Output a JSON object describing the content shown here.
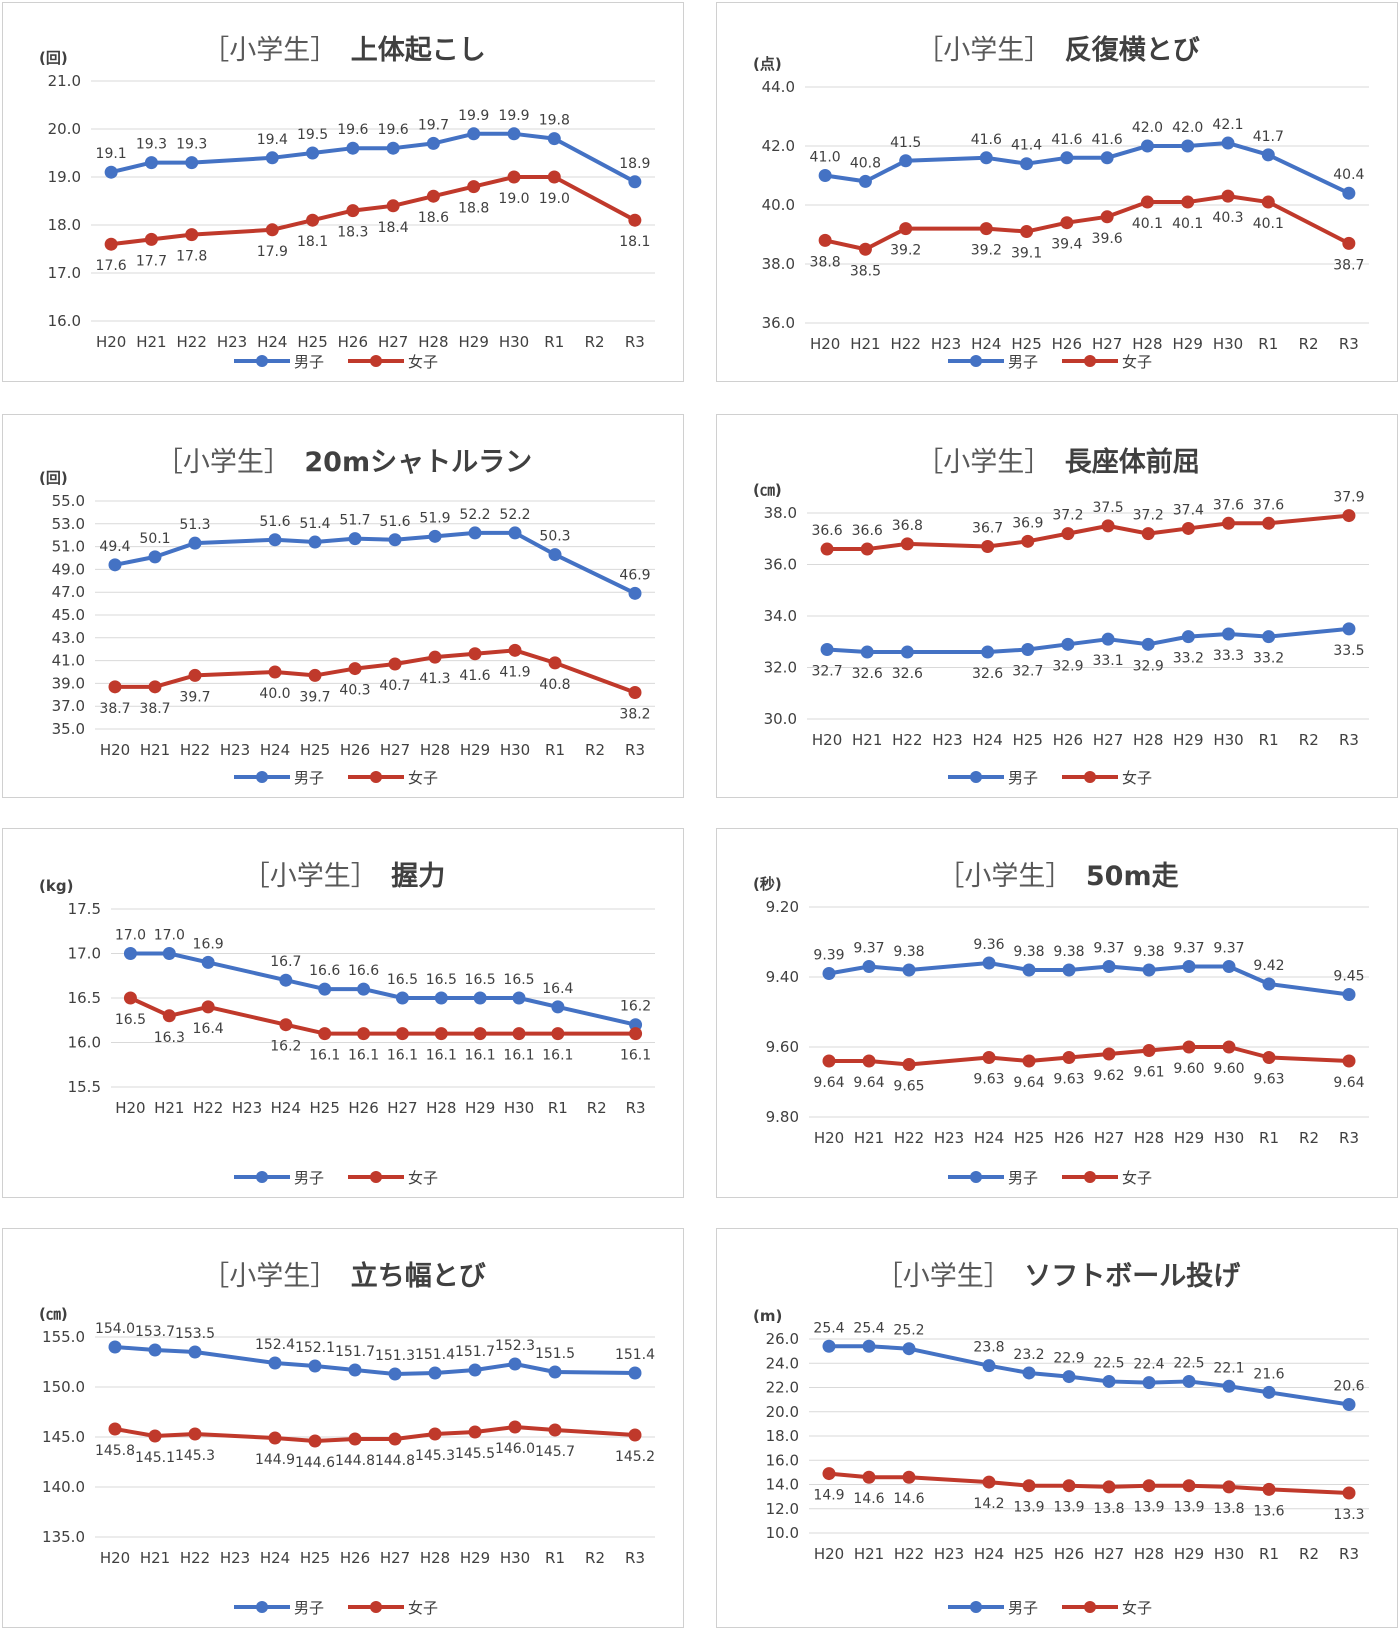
{
  "series_names": {
    "male": "男子",
    "female": "女子"
  },
  "colors": {
    "male": "#4472C4",
    "female": "#C0392B"
  },
  "categories": [
    "H20",
    "H21",
    "H22",
    "H23",
    "H24",
    "H25",
    "H26",
    "H27",
    "H28",
    "H29",
    "H30",
    "R1",
    "R2",
    "R3"
  ],
  "chart_data": [
    {
      "type": "line",
      "title_bracket": "［小学生］",
      "title": "上体起こし",
      "unit": "(回)",
      "ylim": [
        16.0,
        21.0
      ],
      "yticks": [
        "16.0",
        "17.0",
        "18.0",
        "19.0",
        "20.0",
        "21.0"
      ],
      "series": [
        {
          "key": "male",
          "values": [
            "19.1",
            "19.3",
            "19.3",
            null,
            "19.4",
            "19.5",
            "19.6",
            "19.6",
            "19.7",
            "19.9",
            "19.9",
            "19.8",
            null,
            "18.9"
          ]
        },
        {
          "key": "female",
          "values": [
            "17.6",
            "17.7",
            "17.8",
            null,
            "17.9",
            "18.1",
            "18.3",
            "18.4",
            "18.6",
            "18.8",
            "19.0",
            "19.0",
            null,
            "18.1"
          ]
        }
      ]
    },
    {
      "type": "line",
      "title_bracket": "［小学生］",
      "title": "反復横とび",
      "unit": "(点)",
      "ylim": [
        36.0,
        44.0
      ],
      "yticks": [
        "36.0",
        "38.0",
        "40.0",
        "42.0",
        "44.0"
      ],
      "series": [
        {
          "key": "male",
          "values": [
            "41.0",
            "40.8",
            "41.5",
            null,
            "41.6",
            "41.4",
            "41.6",
            "41.6",
            "42.0",
            "42.0",
            "42.1",
            "41.7",
            null,
            "40.4"
          ]
        },
        {
          "key": "female",
          "values": [
            "38.8",
            "38.5",
            "39.2",
            null,
            "39.2",
            "39.1",
            "39.4",
            "39.6",
            "40.1",
            "40.1",
            "40.3",
            "40.1",
            null,
            "38.7"
          ]
        }
      ]
    },
    {
      "type": "line",
      "title_bracket": "［小学生］",
      "title": "20mシャトルラン",
      "unit": "(回)",
      "ylim": [
        35.0,
        55.0
      ],
      "yticks": [
        "35.0",
        "37.0",
        "39.0",
        "41.0",
        "43.0",
        "45.0",
        "47.0",
        "49.0",
        "51.0",
        "53.0",
        "55.0"
      ],
      "series": [
        {
          "key": "male",
          "values": [
            "49.4",
            "50.1",
            "51.3",
            null,
            "51.6",
            "51.4",
            "51.7",
            "51.6",
            "51.9",
            "52.2",
            "52.2",
            "50.3",
            null,
            "46.9"
          ]
        },
        {
          "key": "female",
          "values": [
            "38.7",
            "38.7",
            "39.7",
            null,
            "40.0",
            "39.7",
            "40.3",
            "40.7",
            "41.3",
            "41.6",
            "41.9",
            "40.8",
            null,
            "38.2"
          ]
        }
      ]
    },
    {
      "type": "line",
      "title_bracket": "［小学生］",
      "title": "長座体前屈",
      "unit": "(㎝)",
      "ylim": [
        30.0,
        38.0
      ],
      "yticks": [
        "30.0",
        "32.0",
        "34.0",
        "36.0",
        "38.0"
      ],
      "series": [
        {
          "key": "male",
          "values": [
            "32.7",
            "32.6",
            "32.6",
            null,
            "32.6",
            "32.7",
            "32.9",
            "33.1",
            "32.9",
            "33.2",
            "33.3",
            "33.2",
            null,
            "33.5"
          ]
        },
        {
          "key": "female",
          "values": [
            "36.6",
            "36.6",
            "36.8",
            null,
            "36.7",
            "36.9",
            "37.2",
            "37.5",
            "37.2",
            "37.4",
            "37.6",
            "37.6",
            null,
            "37.9"
          ]
        }
      ]
    },
    {
      "type": "line",
      "title_bracket": "［小学生］",
      "title": "握力",
      "unit": "(kg)",
      "ylim": [
        15.5,
        17.5
      ],
      "yticks": [
        "15.5",
        "16.0",
        "16.5",
        "17.0",
        "17.5"
      ],
      "series": [
        {
          "key": "male",
          "values": [
            "17.0",
            "17.0",
            "16.9",
            null,
            "16.7",
            "16.6",
            "16.6",
            "16.5",
            "16.5",
            "16.5",
            "16.5",
            "16.4",
            null,
            "16.2"
          ]
        },
        {
          "key": "female",
          "values": [
            "16.5",
            "16.3",
            "16.4",
            null,
            "16.2",
            "16.1",
            "16.1",
            "16.1",
            "16.1",
            "16.1",
            "16.1",
            "16.1",
            null,
            "16.1"
          ]
        }
      ]
    },
    {
      "type": "line",
      "title_bracket": "［小学生］",
      "title": "50m走",
      "unit": "(秒)",
      "ylim": [
        9.2,
        9.8
      ],
      "y_reversed": true,
      "yticks": [
        "9.20",
        "9.40",
        "9.60",
        "9.80"
      ],
      "series": [
        {
          "key": "male",
          "values": [
            "9.39",
            "9.37",
            "9.38",
            null,
            "9.36",
            "9.38",
            "9.38",
            "9.37",
            "9.38",
            "9.37",
            "9.37",
            "9.42",
            null,
            "9.45"
          ]
        },
        {
          "key": "female",
          "values": [
            "9.64",
            "9.64",
            "9.65",
            null,
            "9.63",
            "9.64",
            "9.63",
            "9.62",
            "9.61",
            "9.60",
            "9.60",
            "9.63",
            null,
            "9.64"
          ]
        }
      ]
    },
    {
      "type": "line",
      "title_bracket": "［小学生］",
      "title": "立ち幅とび",
      "unit": "(㎝)",
      "ylim": [
        135.0,
        155.0
      ],
      "yticks": [
        "135.0",
        "140.0",
        "145.0",
        "150.0",
        "155.0"
      ],
      "series": [
        {
          "key": "male",
          "values": [
            "154.0",
            "153.7",
            "153.5",
            null,
            "152.4",
            "152.1",
            "151.7",
            "151.3",
            "151.4",
            "151.7",
            "152.3",
            "151.5",
            null,
            "151.4"
          ]
        },
        {
          "key": "female",
          "values": [
            "145.8",
            "145.1",
            "145.3",
            null,
            "144.9",
            "144.6",
            "144.8",
            "144.8",
            "145.3",
            "145.5",
            "146.0",
            "145.7",
            null,
            "145.2"
          ]
        }
      ]
    },
    {
      "type": "line",
      "title_bracket": "［小学生］",
      "title": "ソフトボール投げ",
      "unit": "(m)",
      "ylim": [
        10.0,
        26.0
      ],
      "yticks": [
        "10.0",
        "12.0",
        "14.0",
        "16.0",
        "18.0",
        "20.0",
        "22.0",
        "24.0",
        "26.0"
      ],
      "series": [
        {
          "key": "male",
          "values": [
            "25.4",
            "25.4",
            "25.2",
            null,
            "23.8",
            "23.2",
            "22.9",
            "22.5",
            "22.4",
            "22.5",
            "22.1",
            "21.6",
            null,
            "20.6"
          ]
        },
        {
          "key": "female",
          "values": [
            "14.9",
            "14.6",
            "14.6",
            null,
            "14.2",
            "13.9",
            "13.9",
            "13.8",
            "13.9",
            "13.9",
            "13.8",
            "13.6",
            null,
            "13.3"
          ]
        }
      ]
    }
  ]
}
